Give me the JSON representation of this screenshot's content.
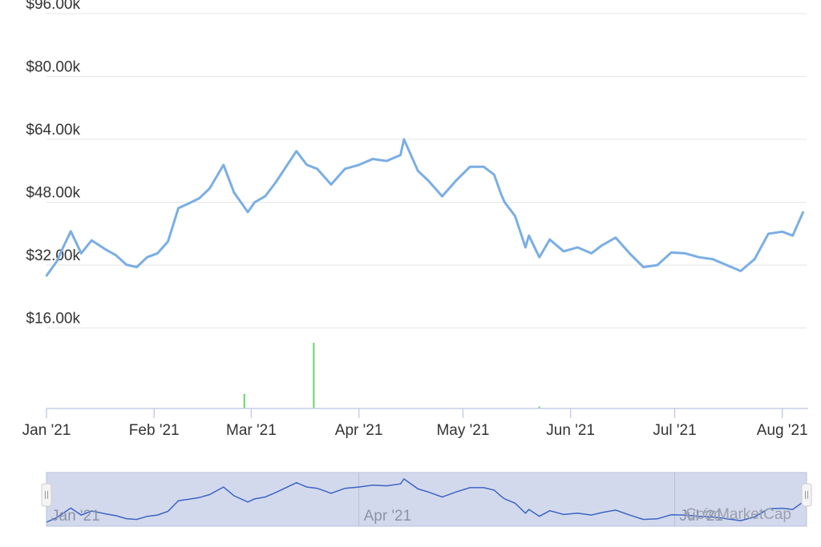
{
  "chart_data": {
    "type": "line",
    "y_ticks": [
      "$16.00k",
      "$32.00k",
      "$48.00k",
      "$64.00k",
      "$80.00k",
      "$96.00k"
    ],
    "y_tick_values": [
      16000,
      32000,
      48000,
      64000,
      80000,
      96000
    ],
    "ylim": [
      0,
      96000
    ],
    "x_ticks": [
      "Jan '21",
      "Feb '21",
      "Mar '21",
      "Apr '21",
      "May '21",
      "Jun '21",
      "Jul '21",
      "Aug '21"
    ],
    "x_tick_dates": [
      "2021-01-01",
      "2021-02-01",
      "2021-03-01",
      "2021-04-01",
      "2021-05-01",
      "2021-06-01",
      "2021-07-01",
      "2021-08-01"
    ],
    "xlim": [
      "2021-01-01",
      "2021-08-08"
    ],
    "grid": true,
    "series": [
      {
        "color": "#7aaee4",
        "x": [
          "2021-01-01",
          "2021-01-04",
          "2021-01-06",
          "2021-01-08",
          "2021-01-11",
          "2021-01-14",
          "2021-01-18",
          "2021-01-21",
          "2021-01-24",
          "2021-01-27",
          "2021-01-30",
          "2021-02-02",
          "2021-02-05",
          "2021-02-08",
          "2021-02-11",
          "2021-02-14",
          "2021-02-17",
          "2021-02-21",
          "2021-02-24",
          "2021-02-28",
          "2021-03-02",
          "2021-03-05",
          "2021-03-08",
          "2021-03-11",
          "2021-03-14",
          "2021-03-17",
          "2021-03-20",
          "2021-03-24",
          "2021-03-28",
          "2021-04-01",
          "2021-04-05",
          "2021-04-09",
          "2021-04-13",
          "2021-04-14",
          "2021-04-18",
          "2021-04-21",
          "2021-04-25",
          "2021-04-29",
          "2021-05-03",
          "2021-05-07",
          "2021-05-10",
          "2021-05-12",
          "2021-05-13",
          "2021-05-16",
          "2021-05-19",
          "2021-05-20",
          "2021-05-23",
          "2021-05-26",
          "2021-05-30",
          "2021-06-03",
          "2021-06-07",
          "2021-06-10",
          "2021-06-14",
          "2021-06-18",
          "2021-06-22",
          "2021-06-26",
          "2021-06-30",
          "2021-07-04",
          "2021-07-08",
          "2021-07-12",
          "2021-07-16",
          "2021-07-20",
          "2021-07-24",
          "2021-07-28",
          "2021-08-01",
          "2021-08-04",
          "2021-08-07"
        ],
        "values": [
          29300,
          33000,
          36900,
          40600,
          35000,
          38300,
          36000,
          34500,
          32100,
          31500,
          34000,
          35000,
          38000,
          46500,
          47700,
          49000,
          51500,
          57500,
          50500,
          45500,
          48000,
          49500,
          53000,
          57000,
          61000,
          57500,
          56500,
          52500,
          56500,
          57500,
          59000,
          58500,
          60000,
          64000,
          56000,
          53500,
          49500,
          53500,
          57000,
          57000,
          55000,
          50000,
          48000,
          44500,
          36500,
          39500,
          34000,
          38500,
          35500,
          36500,
          35000,
          37000,
          39000,
          35000,
          31500,
          32000,
          35200,
          35000,
          34000,
          33500,
          32000,
          30500,
          33500,
          40000,
          40500,
          39500,
          45500
        ]
      }
    ],
    "volume": {
      "color": "#66d466",
      "x": [
        "2021-02-27",
        "2021-03-19",
        "2021-05-23"
      ],
      "relative_height": [
        0.22,
        1.0,
        0.03
      ]
    },
    "navigator": {
      "x_ticks": [
        "Jan '21",
        "Apr '21",
        "Jul '21"
      ],
      "x_tick_dates": [
        "2021-01-01",
        "2021-04-01",
        "2021-07-01"
      ]
    },
    "watermark": "CoinMarketCap"
  }
}
